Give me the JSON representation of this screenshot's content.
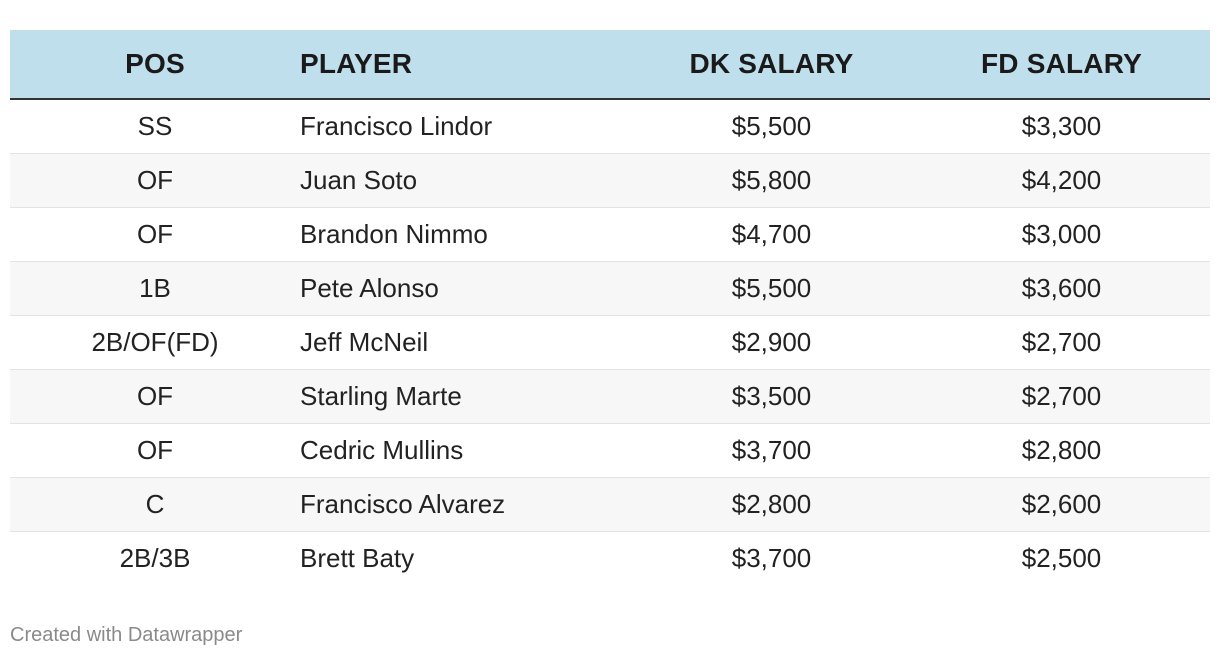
{
  "chart_data": {
    "type": "table",
    "columns": [
      "POS",
      "PLAYER",
      "DK SALARY",
      "FD SALARY"
    ],
    "rows": [
      [
        "SS",
        "Francisco Lindor",
        "$5,500",
        "$3,300"
      ],
      [
        "OF",
        "Juan Soto",
        "$5,800",
        "$4,200"
      ],
      [
        "OF",
        "Brandon Nimmo",
        "$4,700",
        "$3,000"
      ],
      [
        "1B",
        "Pete Alonso",
        "$5,500",
        "$3,600"
      ],
      [
        "2B/OF(FD)",
        "Jeff McNeil",
        "$2,900",
        "$2,700"
      ],
      [
        "OF",
        "Starling Marte",
        "$3,500",
        "$2,700"
      ],
      [
        "OF",
        "Cedric Mullins",
        "$3,700",
        "$2,800"
      ],
      [
        "C",
        "Francisco Alvarez",
        "$2,800",
        "$2,600"
      ],
      [
        "2B/3B",
        "Brett Baty",
        "$3,700",
        "$2,500"
      ]
    ],
    "header_background": "#c0dfec",
    "stripe_background": "#f7f7f7"
  },
  "footer": {
    "credit": "Created with Datawrapper"
  }
}
